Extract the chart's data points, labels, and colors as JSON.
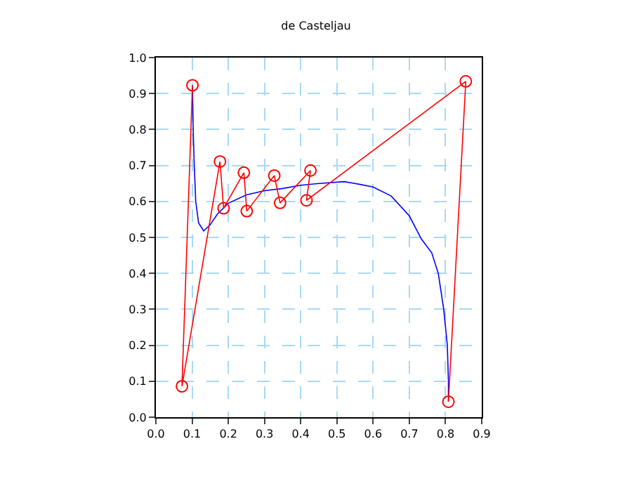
{
  "chart_data": {
    "type": "line",
    "title": "de Casteljau",
    "xlim": [
      0,
      0.9
    ],
    "ylim": [
      0,
      1.0
    ],
    "xticks": [
      {
        "value": 0,
        "label": "0.0"
      },
      0.1,
      0.2,
      0.3,
      0.4,
      0.5,
      0.6,
      0.7,
      0.8,
      0.9
    ],
    "yticks": [
      {
        "value": 0,
        "label": "0.0"
      },
      0.1,
      0.2,
      0.3,
      0.4,
      0.5,
      0.6,
      0.7,
      0.8,
      0.9,
      {
        "value": 1,
        "label": "1.0"
      }
    ],
    "grid": true,
    "series": [
      {
        "color": "#0000ff",
        "marker": "none",
        "x": [
          0.101,
          0.103,
          0.106,
          0.11,
          0.118,
          0.132,
          0.15,
          0.17,
          0.2,
          0.25,
          0.3,
          0.35,
          0.4,
          0.45,
          0.52,
          0.55,
          0.6,
          0.65,
          0.7,
          0.733,
          0.762,
          0.78,
          0.795,
          0.805,
          0.808,
          0.808
        ],
        "values": [
          0.923,
          0.8,
          0.7,
          0.6,
          0.54,
          0.518,
          0.535,
          0.565,
          0.595,
          0.618,
          0.63,
          0.636,
          0.645,
          0.65,
          0.655,
          0.65,
          0.64,
          0.615,
          0.56,
          0.496,
          0.457,
          0.4,
          0.3,
          0.2,
          0.1,
          0.043
        ]
      },
      {
        "color": "#ff0000",
        "marker": "circle",
        "x": [
          0.101,
          0.072,
          0.177,
          0.187,
          0.243,
          0.251,
          0.327,
          0.343,
          0.427,
          0.416,
          0.856,
          0.808
        ],
        "values": [
          0.923,
          0.086,
          0.711,
          0.581,
          0.68,
          0.573,
          0.672,
          0.596,
          0.686,
          0.603,
          0.934,
          0.043
        ]
      }
    ]
  }
}
